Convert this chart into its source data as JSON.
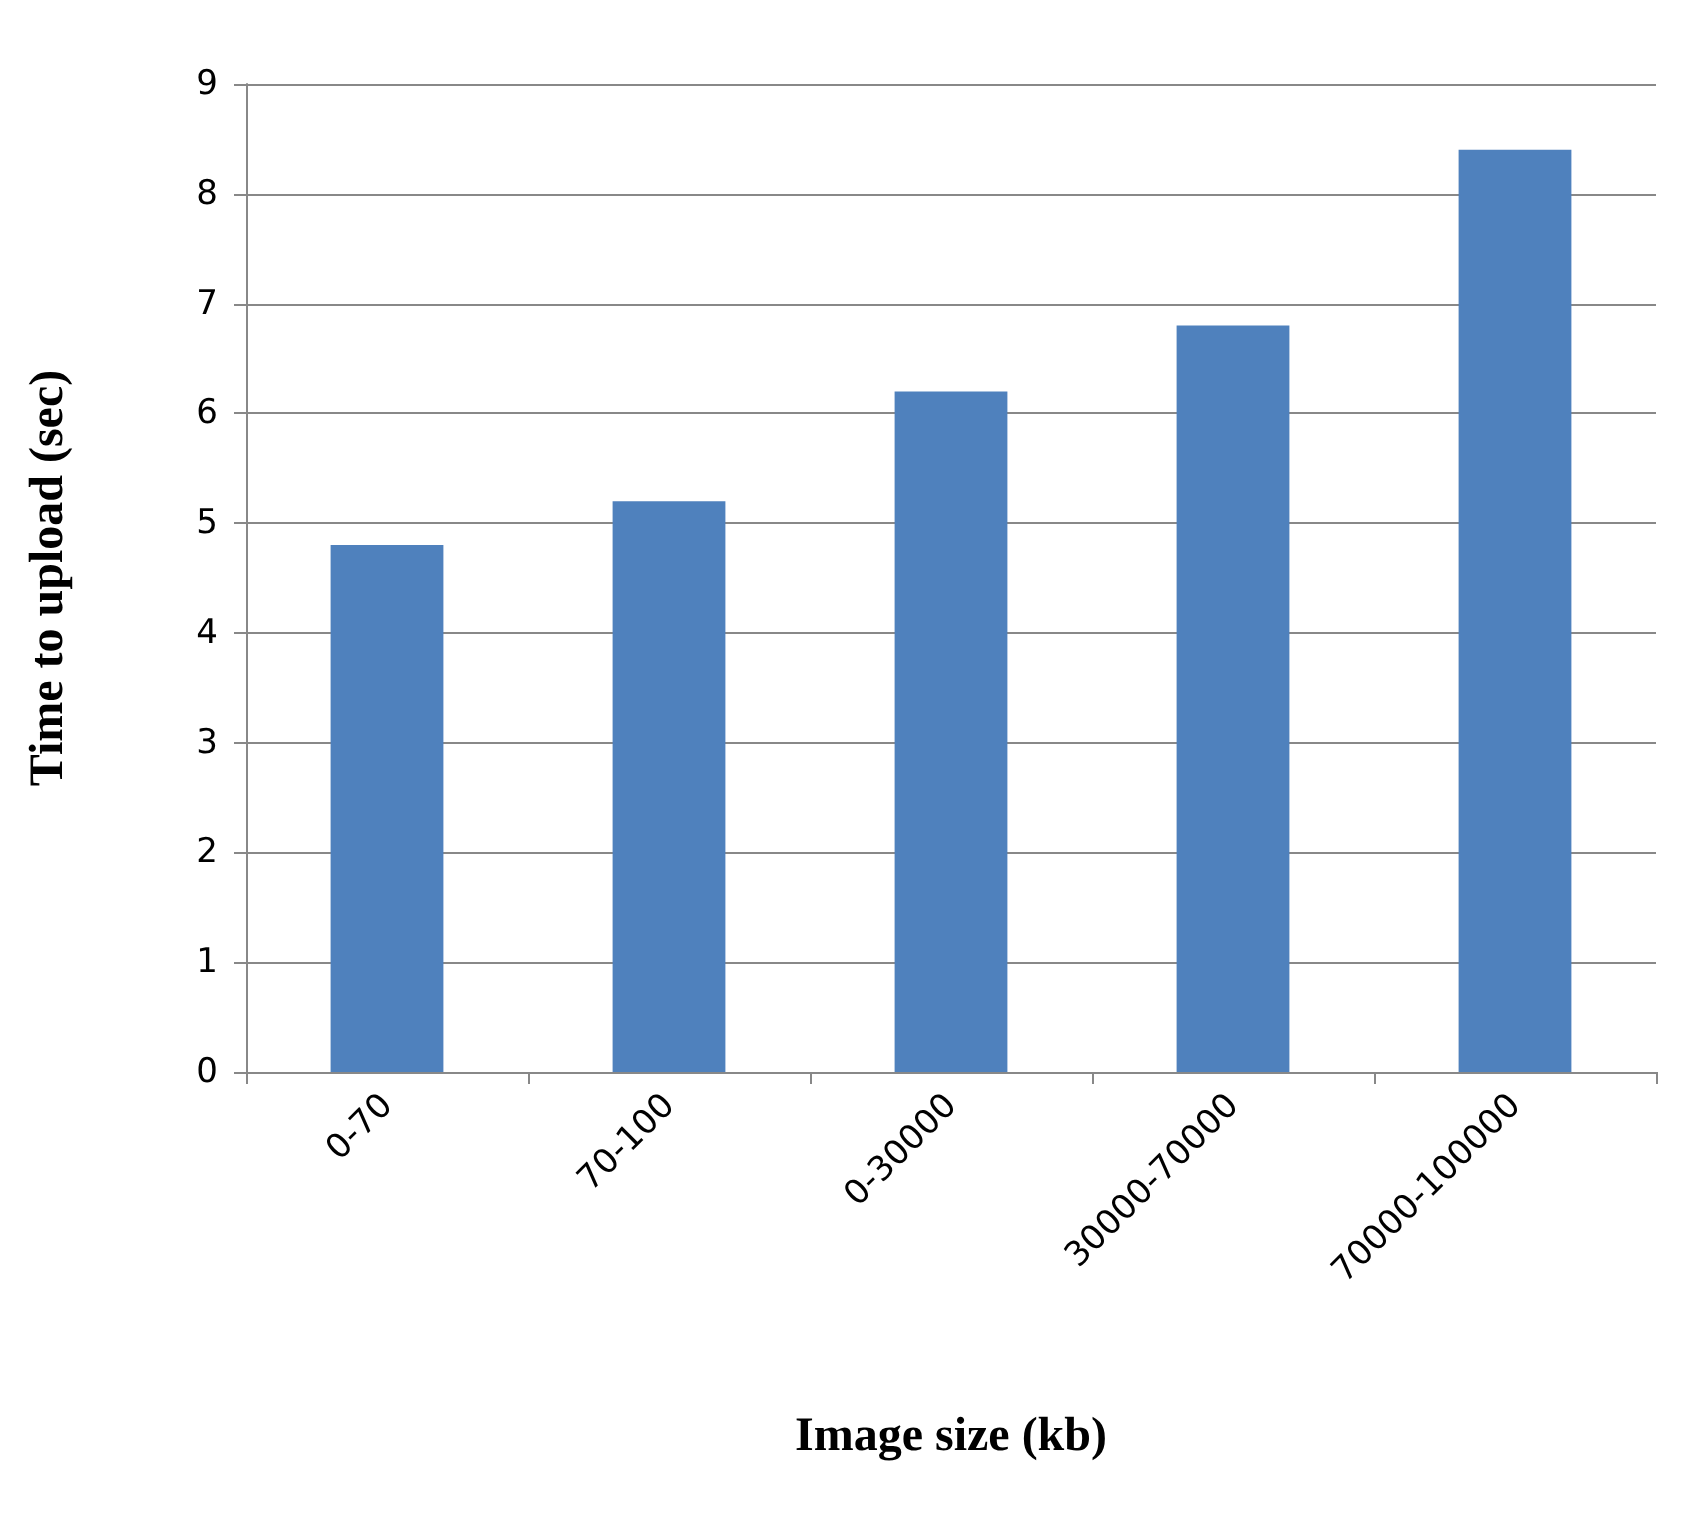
{
  "chart_data": {
    "type": "bar",
    "xlabel": "Image size (kb)",
    "ylabel": "Time to upload (sec)",
    "categories": [
      "0-70",
      "70-100",
      "0-30000",
      "30000-70000",
      "70000-100000"
    ],
    "values": [
      4.8,
      5.2,
      6.2,
      6.8,
      8.4
    ],
    "color": "#4f81bd",
    "ylim": [
      0,
      9
    ],
    "yticks": [
      0,
      1,
      2,
      3,
      4,
      5,
      6,
      7,
      8,
      9
    ],
    "grid": "y"
  }
}
